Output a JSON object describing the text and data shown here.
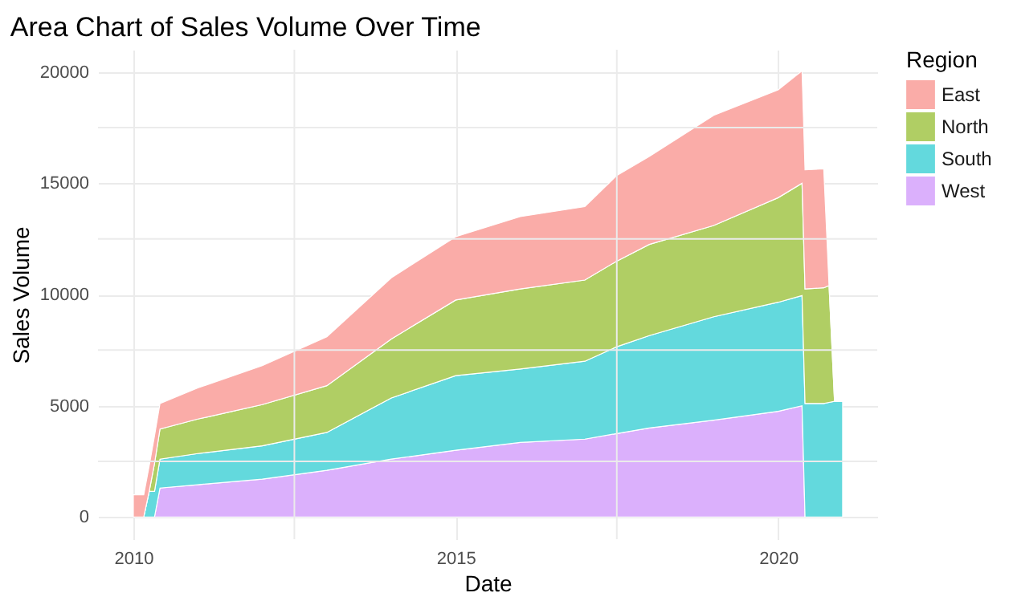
{
  "chart_data": {
    "type": "area",
    "title": "Area Chart of Sales Volume Over Time",
    "xlabel": "Date",
    "ylabel": "Sales Volume",
    "legend_title": "Region",
    "stacked": true,
    "x": [
      "2010-01-01",
      "2010-03-01",
      "2010-04-01",
      "2010-05-01",
      "2010-06-01",
      "2011-01-01",
      "2012-01-01",
      "2013-01-01",
      "2014-01-01",
      "2015-01-01",
      "2016-01-01",
      "2017-01-01",
      "2017-07-01",
      "2018-01-01",
      "2019-01-01",
      "2020-01-01",
      "2020-05-15",
      "2020-06-01",
      "2020-09-15",
      "2020-10-15",
      "2020-11-15",
      "2020-12-31"
    ],
    "series": [
      {
        "name": "West",
        "color": "#dbb0fc",
        "values": [
          0,
          0,
          0,
          0,
          1300,
          1450,
          1700,
          2100,
          2600,
          3000,
          3350,
          3500,
          3750,
          4000,
          4350,
          4750,
          5000,
          0,
          0,
          0,
          0,
          0
        ]
      },
      {
        "name": "South",
        "color": "#63d9dd",
        "values": [
          0,
          0,
          1150,
          1150,
          1300,
          1400,
          1500,
          1700,
          2750,
          3350,
          3300,
          3500,
          3900,
          4150,
          4650,
          4900,
          4950,
          5100,
          5100,
          5150,
          5200,
          5200
        ]
      },
      {
        "name": "North",
        "color": "#b0ce64",
        "values": [
          0,
          0,
          0,
          1250,
          1350,
          1550,
          1850,
          2100,
          2650,
          3400,
          3600,
          3650,
          3850,
          4100,
          4100,
          4700,
          5050,
          5150,
          5200,
          5250,
          0,
          0
        ]
      },
      {
        "name": "East",
        "color": "#faaca8",
        "values": [
          1000,
          1000,
          1150,
          1250,
          1150,
          1400,
          1750,
          2200,
          2750,
          2850,
          3250,
          3300,
          3850,
          3950,
          4950,
          4850,
          5050,
          5350,
          5350,
          0,
          0,
          0
        ]
      }
    ],
    "xlim": [
      "2009-06-15",
      "2021-07-15"
    ],
    "xticks": [
      "2010",
      {
        "value": "2012-07-01",
        "label": null
      },
      "2015",
      {
        "value": "2017-07-01",
        "label": null
      },
      "2020"
    ],
    "ylim": [
      -1000,
      21000
    ],
    "yticks": [
      0,
      {
        "value": 2500,
        "label": null
      },
      5000,
      {
        "value": 7500,
        "label": null
      },
      10000,
      {
        "value": 12500,
        "label": null
      },
      15000,
      {
        "value": 17500,
        "label": null
      },
      20000
    ],
    "grid": true,
    "legend": "right"
  }
}
